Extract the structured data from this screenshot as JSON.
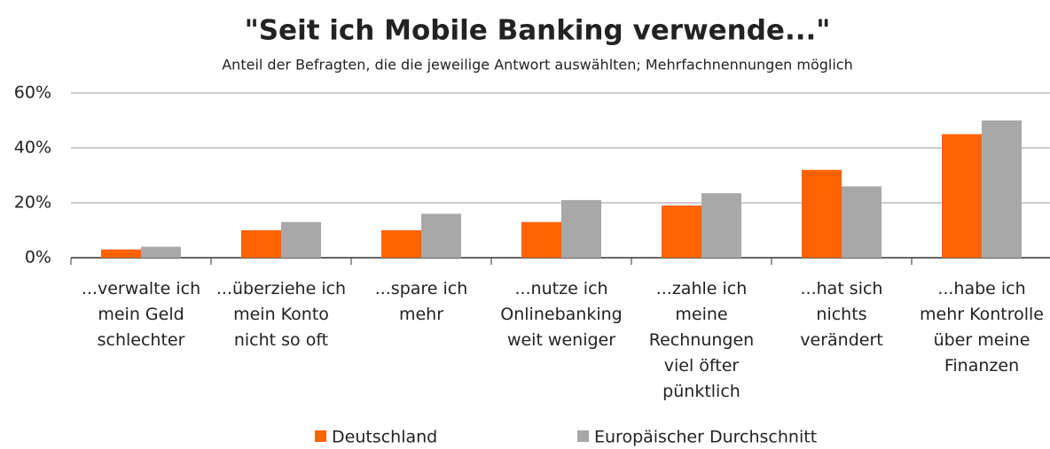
{
  "chart_data": {
    "type": "bar",
    "title": "\"Seit ich Mobile Banking verwende...\"",
    "subtitle": "Anteil der Befragten, die die jeweilige Antwort auswählten; Mehrfachnennungen  möglich",
    "categories": [
      "...verwalte ich\nmein Geld\nschlechter",
      "...überziehe ich\nmein Konto\nnicht so oft",
      "...spare ich\nmehr",
      "...nutze ich\nOnlinebanking\nweit weniger",
      "...zahle ich\nmeine\nRechnungen\nviel öfter\npünktlich",
      "...hat sich\nnichts\nverändert",
      "...habe ich\nmehr Kontrolle\nüber meine\nFinanzen"
    ],
    "series": [
      {
        "name": "Deutschland",
        "color": "#ff6200",
        "values": [
          3,
          10,
          10,
          13,
          19,
          32,
          45
        ]
      },
      {
        "name": "Europäischer Durchschnitt",
        "color": "#a8a8a8",
        "values": [
          4,
          13,
          16,
          21,
          23.5,
          26,
          50
        ]
      }
    ],
    "ylim": [
      0,
      60
    ],
    "yticks": [
      {
        "value": 0,
        "label": "0%"
      },
      {
        "value": 20,
        "label": "20%"
      },
      {
        "value": 40,
        "label": "40%"
      },
      {
        "value": 60,
        "label": "60%"
      }
    ],
    "grid": true,
    "legend": "bottom"
  }
}
